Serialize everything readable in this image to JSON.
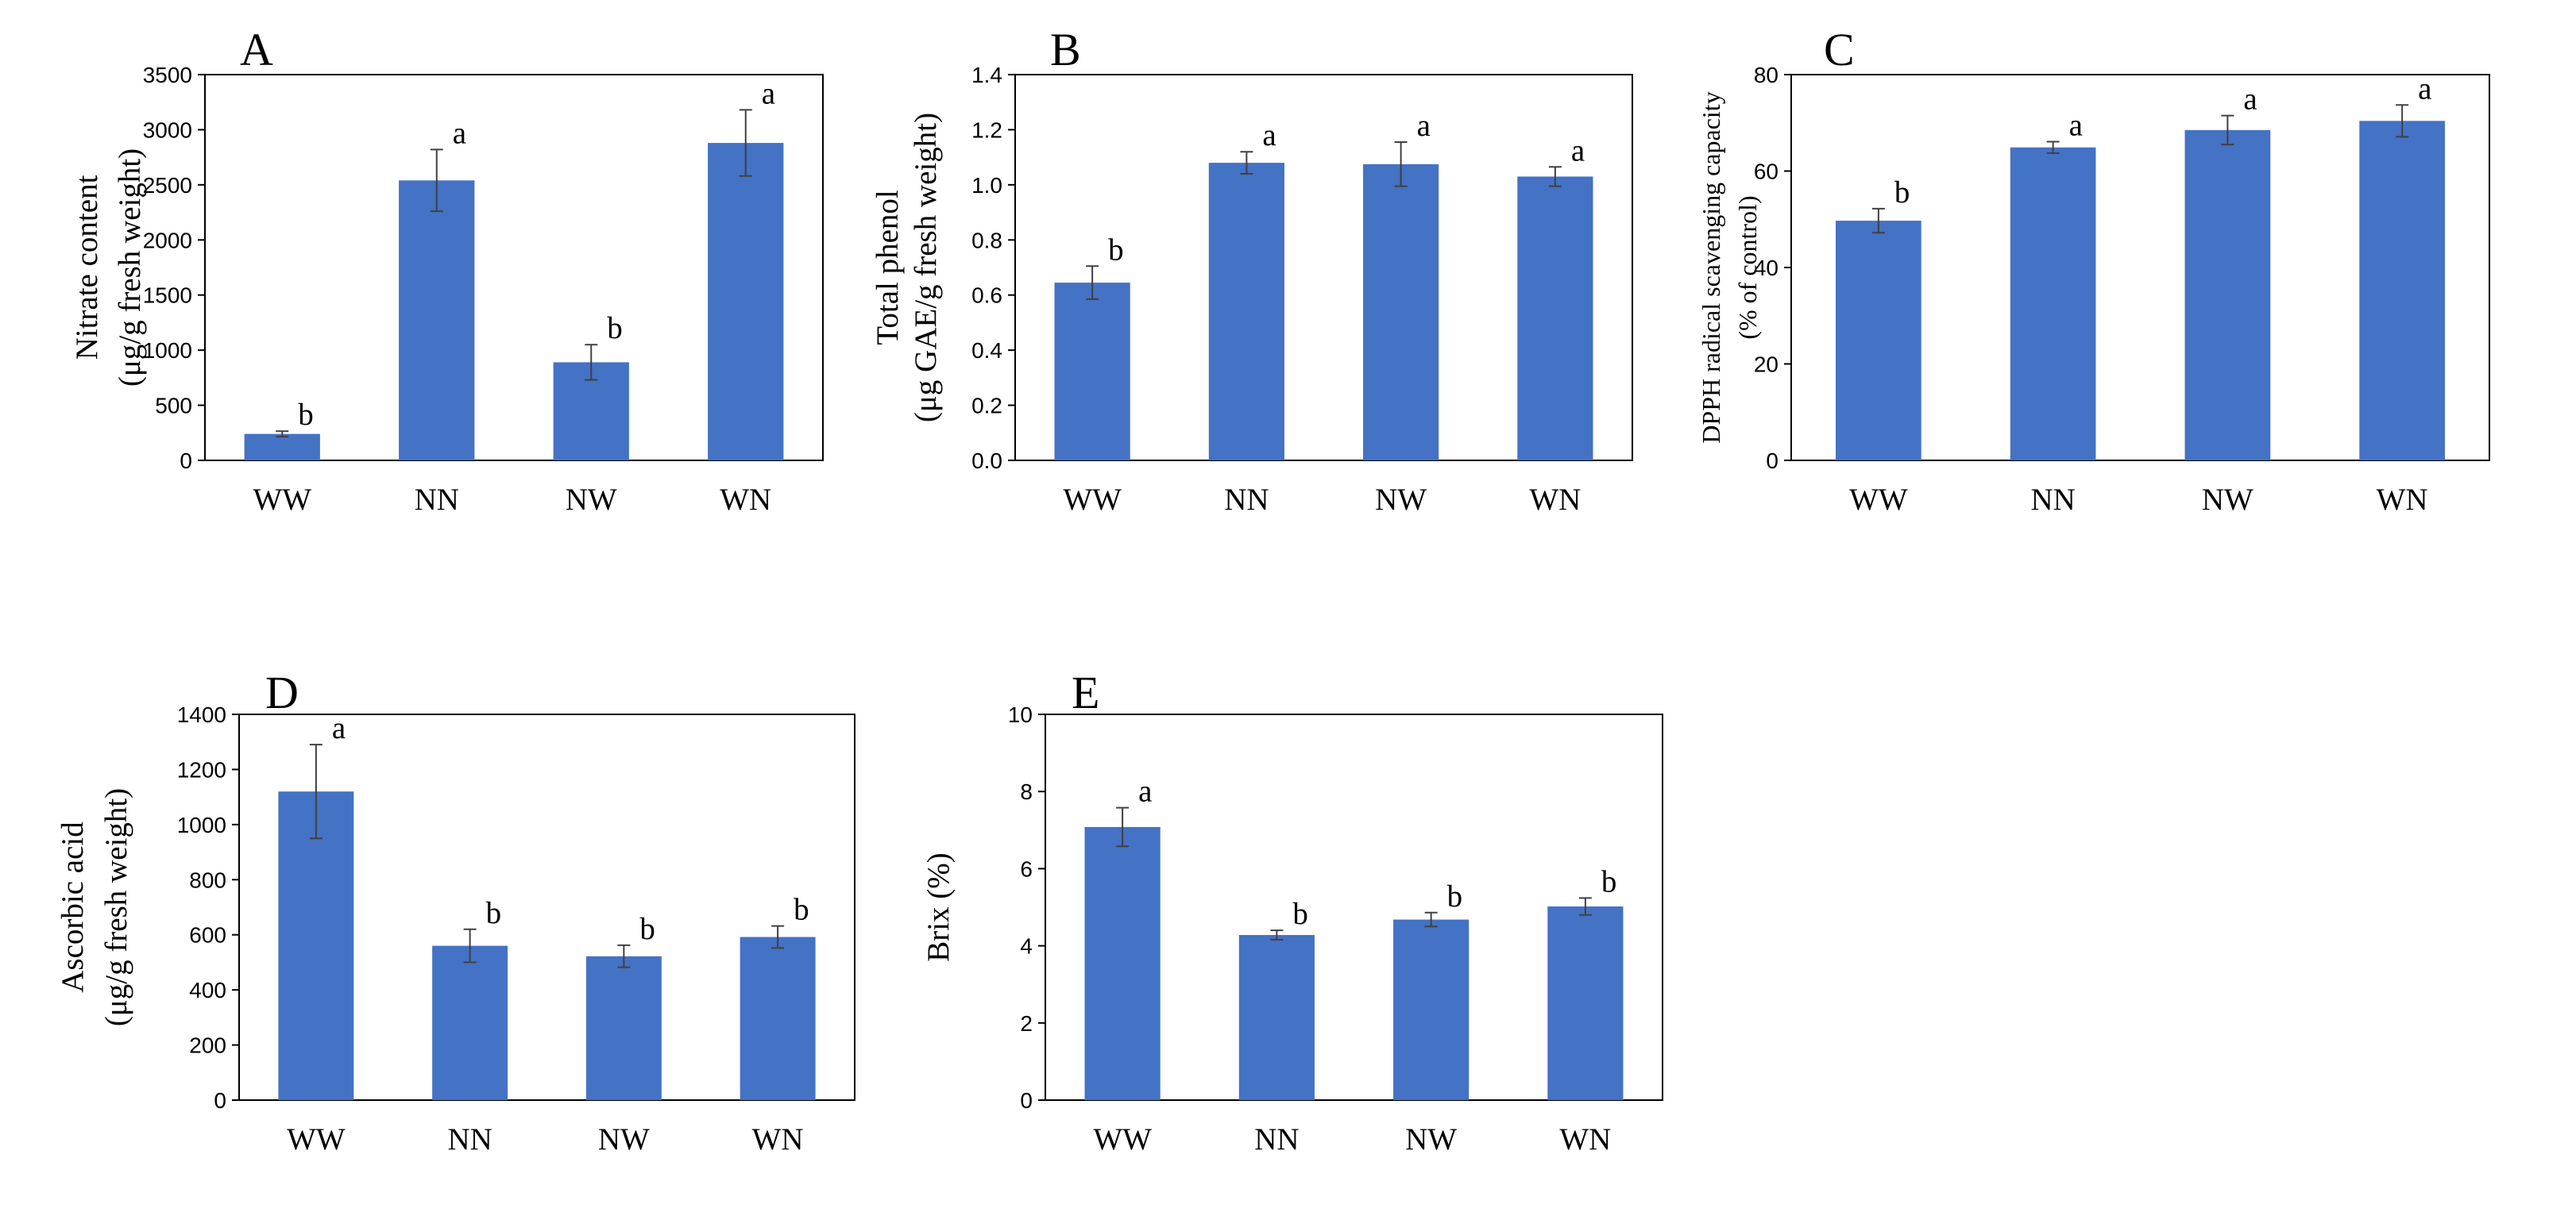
{
  "chart_data": [
    {
      "panel": "A",
      "type": "bar",
      "ylabel": [
        "Nitrate content",
        "(μg/g fresh weight)"
      ],
      "categories": [
        "WW",
        "NN",
        "NW",
        "WN"
      ],
      "values": [
        240,
        2540,
        890,
        2880
      ],
      "errors": [
        25,
        280,
        160,
        300
      ],
      "letters": [
        "b",
        "a",
        "b",
        "a"
      ],
      "ylim": [
        0,
        3500
      ],
      "yticks": [
        "0",
        "500",
        "1000",
        "1500",
        "2000",
        "2500",
        "3000",
        "3500"
      ],
      "bar_color": "#4472C4"
    },
    {
      "panel": "B",
      "type": "bar",
      "ylabel": [
        "Total phenol",
        "(μg GAE/g fresh weight)"
      ],
      "categories": [
        "WW",
        "NN",
        "NW",
        "WN"
      ],
      "values": [
        0.645,
        1.08,
        1.075,
        1.03
      ],
      "errors": [
        0.06,
        0.04,
        0.08,
        0.035
      ],
      "letters": [
        "b",
        "a",
        "a",
        "a"
      ],
      "ylim": [
        0,
        1.4
      ],
      "yticks": [
        "0.0",
        "0.2",
        "0.4",
        "0.6",
        "0.8",
        "1.0",
        "1.2",
        "1.4"
      ],
      "bar_color": "#4472C4"
    },
    {
      "panel": "C",
      "type": "bar",
      "ylabel": [
        "DPPH radical scavenging capacity",
        "(% of control)"
      ],
      "categories": [
        "WW",
        "NN",
        "NW",
        "WN"
      ],
      "values": [
        49.7,
        64.9,
        68.5,
        70.4
      ],
      "errors": [
        2.5,
        1.2,
        3.0,
        3.3
      ],
      "letters": [
        "b",
        "a",
        "a",
        "a"
      ],
      "ylim": [
        0,
        80
      ],
      "yticks": [
        "0",
        "20",
        "40",
        "60",
        "80"
      ],
      "bar_color": "#4472C4"
    },
    {
      "panel": "D",
      "type": "bar",
      "ylabel": [
        "Ascorbic acid",
        "(μg/g fresh weight)"
      ],
      "categories": [
        "WW",
        "NN",
        "NW",
        "WN"
      ],
      "values": [
        1120,
        560,
        522,
        592
      ],
      "errors": [
        170,
        60,
        40,
        40
      ],
      "letters": [
        "a",
        "b",
        "b",
        "b"
      ],
      "ylim": [
        0,
        1400
      ],
      "yticks": [
        "0",
        "200",
        "400",
        "600",
        "800",
        "1000",
        "1200",
        "1400"
      ],
      "bar_color": "#4472C4"
    },
    {
      "panel": "E",
      "type": "bar",
      "ylabel": [
        "Brix (%)"
      ],
      "categories": [
        "WW",
        "NN",
        "NW",
        "WN"
      ],
      "values": [
        7.08,
        4.28,
        4.68,
        5.02
      ],
      "errors": [
        0.5,
        0.12,
        0.18,
        0.22
      ],
      "letters": [
        "a",
        "b",
        "b",
        "b"
      ],
      "ylim": [
        0,
        10
      ],
      "yticks": [
        "0",
        "2",
        "4",
        "6",
        "8",
        "10"
      ],
      "bar_color": "#4472C4"
    }
  ]
}
